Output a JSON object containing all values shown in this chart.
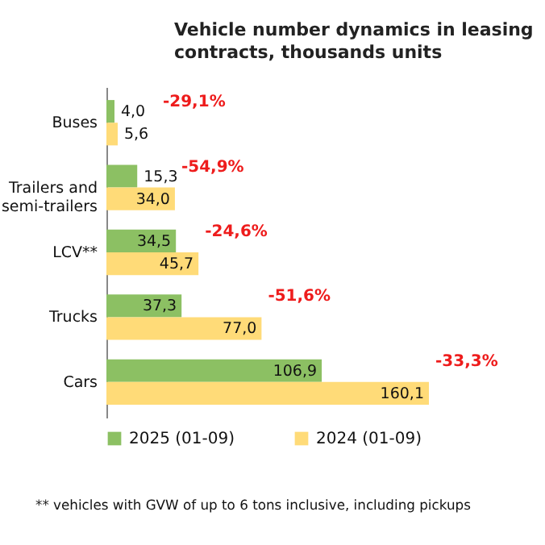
{
  "chart_data": {
    "type": "bar",
    "orientation": "horizontal",
    "title": "Vehicle number dynamics in leasing contracts, thousands units",
    "categories": [
      "Buses",
      "Trailers and semi-trailers",
      "LCV**",
      "Trucks",
      "Cars"
    ],
    "series": [
      {
        "name": "2025 (01-09)",
        "color": "#8cc063",
        "values": [
          4.0,
          15.3,
          34.5,
          37.3,
          106.9
        ],
        "value_labels": [
          "4,0",
          "15,3",
          "34,5",
          "37,3",
          "106,9"
        ]
      },
      {
        "name": "2024 (01-09)",
        "color": "#ffdb78",
        "values": [
          5.6,
          34.0,
          45.7,
          77.0,
          160.1
        ],
        "value_labels": [
          "5,6",
          "34,0",
          "45,7",
          "77,0",
          "160,1"
        ]
      }
    ],
    "tick_labels": "y",
    "legend": "bottom",
    "annotations": [
      {
        "text": "-29,1%",
        "x": 5.6,
        "y": "Buses"
      },
      {
        "text": "-54,9%",
        "x": 34.0,
        "y": "Trailers and semi-trailers"
      },
      {
        "text": "-24,6%",
        "x": 45.7,
        "y": "LCV**"
      },
      {
        "text": "-51,6%",
        "x": 77.0,
        "y": "Trucks"
      },
      {
        "text": "-33,3%",
        "x": 160.1,
        "y": "Cars"
      },
      "** vehicles with GVW of up to 6 tons inclusive, including pickups"
    ]
  }
}
